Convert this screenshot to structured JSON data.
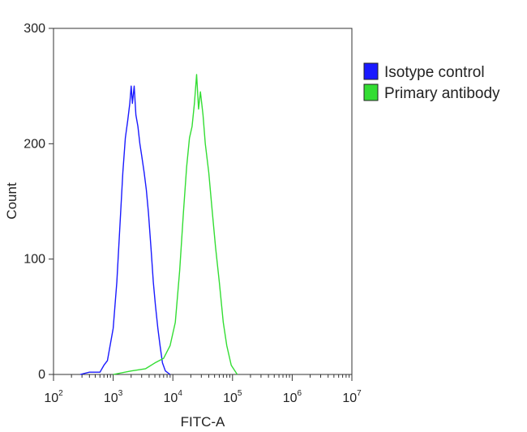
{
  "chart_data": {
    "type": "line",
    "xlabel": "FITC-A",
    "ylabel": "Count",
    "x_scale": "log",
    "xlim": [
      100,
      10000000
    ],
    "ylim": [
      0,
      300
    ],
    "x_ticks": [
      {
        "value": 100,
        "base": "10",
        "exp": "2"
      },
      {
        "value": 1000,
        "base": "10",
        "exp": "3"
      },
      {
        "value": 10000,
        "base": "10",
        "exp": "4"
      },
      {
        "value": 100000,
        "base": "10",
        "exp": "5"
      },
      {
        "value": 1000000,
        "base": "10",
        "exp": "6"
      },
      {
        "value": 10000000,
        "base": "10",
        "exp": "7"
      }
    ],
    "y_ticks": [
      0,
      100,
      200,
      300
    ],
    "grid": false,
    "legend_position": "outside-right-top",
    "series": [
      {
        "name": "Isotype control",
        "color": "#1a1aff",
        "points": [
          [
            280,
            0
          ],
          [
            400,
            2
          ],
          [
            600,
            2
          ],
          [
            700,
            8
          ],
          [
            800,
            12
          ],
          [
            1000,
            40
          ],
          [
            1150,
            80
          ],
          [
            1300,
            130
          ],
          [
            1450,
            175
          ],
          [
            1600,
            205
          ],
          [
            1750,
            220
          ],
          [
            1900,
            235
          ],
          [
            2000,
            250
          ],
          [
            2100,
            235
          ],
          [
            2250,
            250
          ],
          [
            2400,
            225
          ],
          [
            2600,
            215
          ],
          [
            2800,
            200
          ],
          [
            3000,
            190
          ],
          [
            3300,
            175
          ],
          [
            3600,
            160
          ],
          [
            3900,
            140
          ],
          [
            4300,
            110
          ],
          [
            4700,
            80
          ],
          [
            5100,
            60
          ],
          [
            5600,
            40
          ],
          [
            6100,
            25
          ],
          [
            6700,
            10
          ],
          [
            7500,
            3
          ],
          [
            9000,
            0
          ]
        ]
      },
      {
        "name": "Primary antibody",
        "color": "#33dd33",
        "points": [
          [
            1000,
            0
          ],
          [
            2000,
            3
          ],
          [
            3500,
            5
          ],
          [
            5000,
            10
          ],
          [
            7000,
            14
          ],
          [
            9000,
            25
          ],
          [
            11000,
            45
          ],
          [
            13000,
            90
          ],
          [
            15000,
            140
          ],
          [
            17000,
            180
          ],
          [
            19000,
            205
          ],
          [
            21000,
            215
          ],
          [
            23000,
            235
          ],
          [
            25000,
            260
          ],
          [
            27000,
            230
          ],
          [
            29000,
            245
          ],
          [
            32000,
            225
          ],
          [
            35000,
            200
          ],
          [
            40000,
            175
          ],
          [
            45000,
            145
          ],
          [
            52000,
            110
          ],
          [
            60000,
            80
          ],
          [
            70000,
            45
          ],
          [
            80000,
            25
          ],
          [
            95000,
            8
          ],
          [
            120000,
            0
          ]
        ]
      }
    ]
  }
}
